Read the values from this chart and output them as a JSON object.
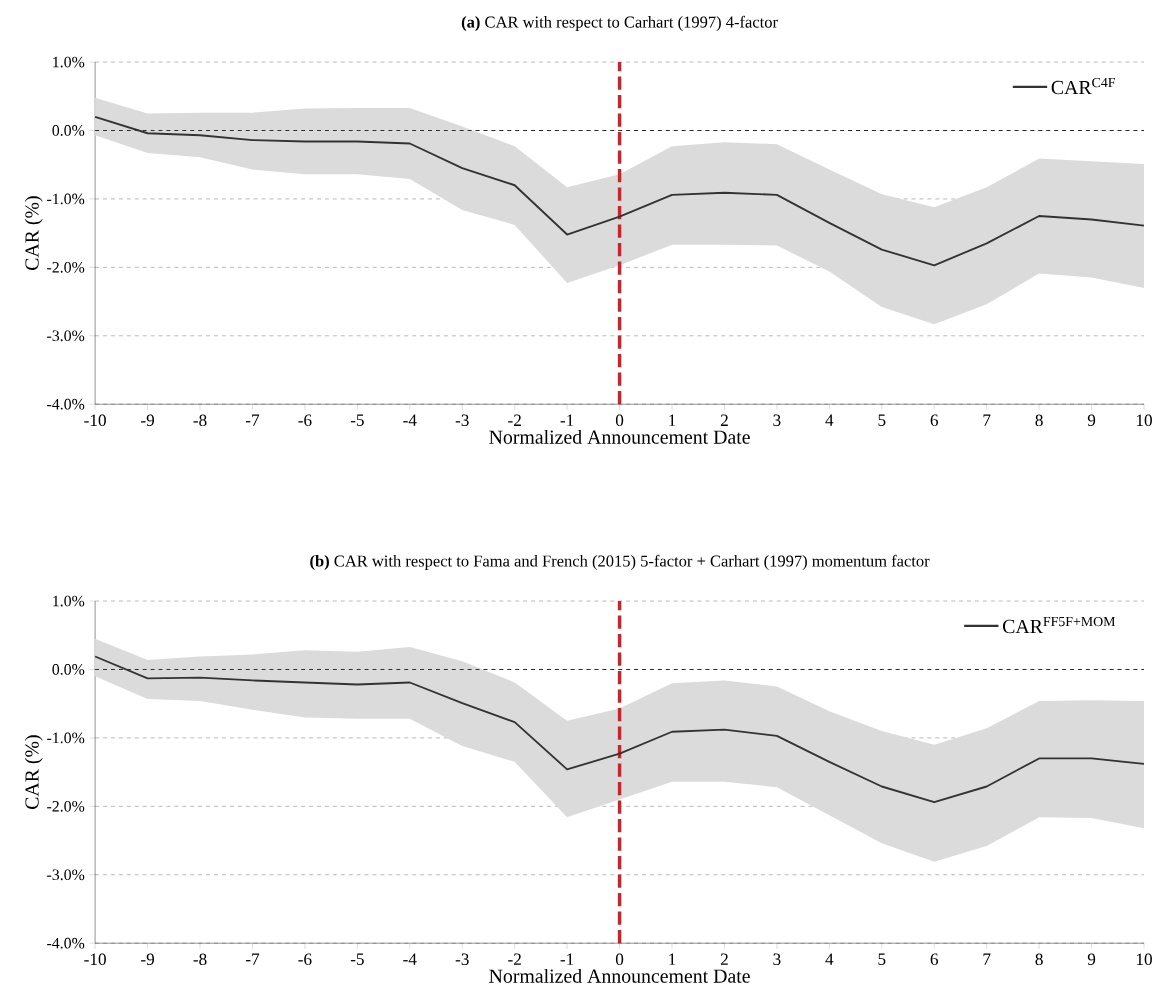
{
  "chart_data": [
    {
      "type": "line",
      "title": "**(a)** CAR with respect to Carhart (1997) 4-factor",
      "xlabel": "Normalized Announcement Date",
      "ylabel": "CAR (%)",
      "x": [
        -10,
        -9,
        -8,
        -7,
        -6,
        -5,
        -4,
        -3,
        -2,
        -1,
        0,
        1,
        2,
        3,
        4,
        5,
        6,
        7,
        8,
        9,
        10
      ],
      "series": [
        {
          "name": "CAR$^{C4F}$",
          "color": "#333333",
          "values": [
            0.2,
            -0.04,
            -0.07,
            -0.14,
            -0.16,
            -0.16,
            -0.19,
            -0.55,
            -0.8,
            -1.52,
            -1.26,
            -0.94,
            -0.91,
            -0.94,
            -1.35,
            -1.74,
            -1.97,
            -1.65,
            -1.25,
            -1.3,
            -1.39
          ],
          "upper": [
            0.48,
            0.25,
            0.26,
            0.26,
            0.32,
            0.33,
            0.33,
            0.06,
            -0.23,
            -0.83,
            -0.64,
            -0.23,
            -0.17,
            -0.2,
            -0.57,
            -0.93,
            -1.12,
            -0.83,
            -0.41,
            -0.45,
            -0.49
          ],
          "lower": [
            -0.07,
            -0.33,
            -0.39,
            -0.57,
            -0.64,
            -0.64,
            -0.71,
            -1.16,
            -1.38,
            -2.23,
            -1.97,
            -1.67,
            -1.67,
            -1.68,
            -2.06,
            -2.58,
            -2.83,
            -2.54,
            -2.09,
            -2.15,
            -2.3
          ]
        }
      ],
      "xlim": [
        -10,
        10
      ],
      "ylim": [
        -4,
        1
      ],
      "xticks": [
        -10,
        -9,
        -8,
        -7,
        -6,
        -5,
        -4,
        -3,
        -2,
        -1,
        0,
        1,
        2,
        3,
        4,
        5,
        6,
        7,
        8,
        9,
        10
      ],
      "yticks": [
        {
          "value": -4,
          "label": "-4.0%"
        },
        {
          "value": -3,
          "label": "-3.0%"
        },
        {
          "value": -2,
          "label": "-2.0%"
        },
        {
          "value": -1,
          "label": "-1.0%"
        },
        {
          "value": 0,
          "label": "0.0%"
        },
        {
          "value": 1,
          "label": "1.0%"
        }
      ],
      "grid": "y",
      "legend": "top right",
      "marker": "none",
      "line_style": "solid",
      "ref_lines": [
        {
          "axis": "y",
          "value": 0,
          "color": "#000000",
          "line_style": "dashed"
        },
        {
          "axis": "x",
          "value": 0,
          "color": "#c0282d",
          "line_style": "dashed"
        }
      ]
    },
    {
      "type": "line",
      "title": "**(b)** CAR with respect to Fama and French (2015) 5-factor + Carhart (1997) momentum factor",
      "xlabel": "Normalized Announcement Date",
      "ylabel": "CAR (%)",
      "x": [
        -10,
        -9,
        -8,
        -7,
        -6,
        -5,
        -4,
        -3,
        -2,
        -1,
        0,
        1,
        2,
        3,
        4,
        5,
        6,
        7,
        8,
        9,
        10
      ],
      "series": [
        {
          "name": "CAR$^{FF5F+MOM}$",
          "color": "#333333",
          "values": [
            0.19,
            -0.13,
            -0.12,
            -0.16,
            -0.19,
            -0.22,
            -0.19,
            -0.49,
            -0.77,
            -1.46,
            -1.23,
            -0.91,
            -0.88,
            -0.97,
            -1.35,
            -1.71,
            -1.94,
            -1.71,
            -1.3,
            -1.3,
            -1.38
          ],
          "upper": [
            0.45,
            0.14,
            0.19,
            0.22,
            0.28,
            0.26,
            0.33,
            0.12,
            -0.19,
            -0.75,
            -0.57,
            -0.2,
            -0.16,
            -0.25,
            -0.61,
            -0.9,
            -1.1,
            -0.86,
            -0.46,
            -0.45,
            -0.46
          ],
          "lower": [
            -0.1,
            -0.43,
            -0.46,
            -0.59,
            -0.7,
            -0.72,
            -0.72,
            -1.12,
            -1.35,
            -2.16,
            -1.9,
            -1.64,
            -1.64,
            -1.72,
            -2.13,
            -2.54,
            -2.81,
            -2.58,
            -2.16,
            -2.17,
            -2.32
          ]
        }
      ],
      "xlim": [
        -10,
        10
      ],
      "ylim": [
        -4,
        1
      ],
      "xticks": [
        -10,
        -9,
        -8,
        -7,
        -6,
        -5,
        -4,
        -3,
        -2,
        -1,
        0,
        1,
        2,
        3,
        4,
        5,
        6,
        7,
        8,
        9,
        10
      ],
      "yticks": [
        {
          "value": -4,
          "label": "-4.0%"
        },
        {
          "value": -3,
          "label": "-3.0%"
        },
        {
          "value": -2,
          "label": "-2.0%"
        },
        {
          "value": -1,
          "label": "-1.0%"
        },
        {
          "value": 0,
          "label": "0.0%"
        },
        {
          "value": 1,
          "label": "1.0%"
        }
      ],
      "grid": "y",
      "legend": "top right",
      "marker": "none",
      "line_style": "solid",
      "ref_lines": [
        {
          "axis": "y",
          "value": 0,
          "color": "#000000",
          "line_style": "dashed"
        },
        {
          "axis": "x",
          "value": 0,
          "color": "#c0282d",
          "line_style": "dashed"
        }
      ]
    }
  ]
}
